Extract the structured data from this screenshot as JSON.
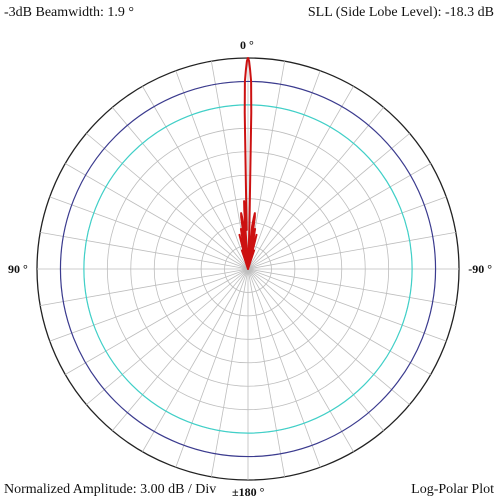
{
  "header": {
    "beamwidth": "-3dB Beamwidth: 1.9 °",
    "sll": "SLL (Side Lobe Level): -18.3 dB"
  },
  "footer": {
    "amplitude": "Normalized Amplitude: 3.00 dB / Div",
    "plot_type": "Log-Polar Plot"
  },
  "chart_data": {
    "type": "polar",
    "scale": "log-polar",
    "amplitude_step_db": 3.0,
    "rings": 9,
    "spoke_step_deg": 10,
    "angle_labels": {
      "top": "0 °",
      "left": "90 °",
      "right": "-90 °",
      "bottom": "±180 °"
    },
    "reference_circles": [
      {
        "level_db": -3,
        "color": "#3b3b8f"
      },
      {
        "level_db": -6,
        "color": "#40d0c8"
      }
    ],
    "pattern_color": "#cc1111",
    "pattern": {
      "angle_deg": [
        -4,
        -2,
        -1.2,
        -0.95,
        -0.6,
        -0.3,
        0,
        0.3,
        0.6,
        0.95,
        1.2,
        2,
        3,
        3.3,
        3.6,
        4,
        5.5,
        6.5,
        7,
        7.5,
        8.5,
        9.3,
        10,
        11,
        12.5,
        14,
        16,
        18,
        20,
        90,
        180,
        -20,
        -18,
        -16,
        -14,
        -12.5,
        -11,
        -10,
        -9.3,
        -8.5,
        -7.5,
        -7,
        -6.5,
        -5.5,
        -4
      ],
      "gain_db": [
        -27,
        -22,
        -7,
        -3,
        -1.5,
        -0.4,
        0,
        -0.4,
        -1.5,
        -3,
        -7,
        -22,
        -19.5,
        -18.3,
        -19.5,
        -27,
        -21.5,
        -20.3,
        -19.8,
        -20.3,
        -27,
        -22.5,
        -21.8,
        -24,
        -27,
        -22.5,
        -27,
        -24.5,
        -27,
        -27,
        -27,
        -27,
        -24.5,
        -27,
        -22.5,
        -27,
        -24,
        -21.8,
        -22.5,
        -27,
        -20.3,
        -19.8,
        -20.3,
        -21.5,
        -27
      ]
    }
  }
}
